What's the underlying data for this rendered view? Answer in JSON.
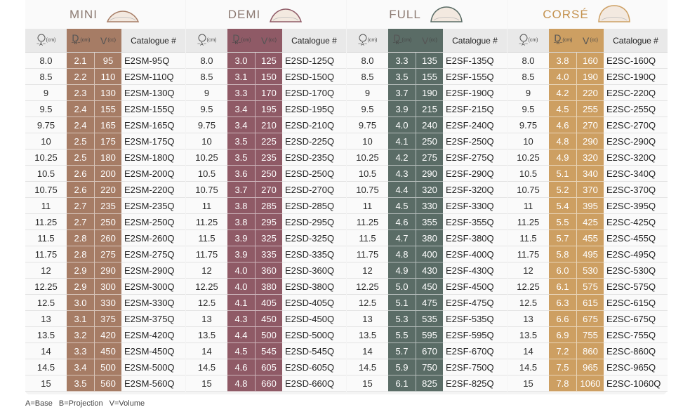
{
  "legend": {
    "a": "A=Base",
    "b": "B=Projection",
    "v": "V=Volume"
  },
  "header_labels": {
    "cm": "(cm)",
    "cc": "(cc)",
    "a": "A",
    "b": "B",
    "v": "V",
    "catalogue": "Catalogue #"
  },
  "blocks": [
    {
      "name": "MINI",
      "key": "mini",
      "rows": [
        [
          "8.0",
          "2.1",
          "95",
          "E2SM-95Q"
        ],
        [
          "8.5",
          "2.2",
          "110",
          "E2SM-110Q"
        ],
        [
          "9",
          "2.3",
          "130",
          "E2SM-130Q"
        ],
        [
          "9.5",
          "2.4",
          "155",
          "E2SM-155Q"
        ],
        [
          "9.75",
          "2.4",
          "165",
          "E2SM-165Q"
        ],
        [
          "10",
          "2.5",
          "175",
          "E2SM-175Q"
        ],
        [
          "10.25",
          "2.5",
          "180",
          "E2SM-180Q"
        ],
        [
          "10.5",
          "2.6",
          "200",
          "E2SM-200Q"
        ],
        [
          "10.75",
          "2.6",
          "220",
          "E2SM-220Q"
        ],
        [
          "11",
          "2.7",
          "235",
          "E2SM-235Q"
        ],
        [
          "11.25",
          "2.7",
          "250",
          "E2SM-250Q"
        ],
        [
          "11.5",
          "2.8",
          "260",
          "E2SM-260Q"
        ],
        [
          "11.75",
          "2.8",
          "275",
          "E2SM-275Q"
        ],
        [
          "12",
          "2.9",
          "290",
          "E2SM-290Q"
        ],
        [
          "12.25",
          "2.9",
          "300",
          "E2SM-300Q"
        ],
        [
          "12.5",
          "3.0",
          "330",
          "E2SM-330Q"
        ],
        [
          "13",
          "3.1",
          "375",
          "E2SM-375Q"
        ],
        [
          "13.5",
          "3.2",
          "420",
          "E2SM-420Q"
        ],
        [
          "14",
          "3.3",
          "450",
          "E2SM-450Q"
        ],
        [
          "14.5",
          "3.4",
          "500",
          "E2SM-500Q"
        ],
        [
          "15",
          "3.5",
          "560",
          "E2SM-560Q"
        ]
      ]
    },
    {
      "name": "DEMI",
      "key": "demi",
      "rows": [
        [
          "8.0",
          "3.0",
          "125",
          "E2SD-125Q"
        ],
        [
          "8.5",
          "3.1",
          "150",
          "E2SD-150Q"
        ],
        [
          "9",
          "3.3",
          "170",
          "E2SD-170Q"
        ],
        [
          "9.5",
          "3.4",
          "195",
          "E2SD-195Q"
        ],
        [
          "9.75",
          "3.4",
          "210",
          "E2SD-210Q"
        ],
        [
          "10",
          "3.5",
          "225",
          "E2SD-225Q"
        ],
        [
          "10.25",
          "3.5",
          "235",
          "E2SD-235Q"
        ],
        [
          "10.5",
          "3.6",
          "250",
          "E2SD-250Q"
        ],
        [
          "10.75",
          "3.7",
          "270",
          "E2SD-270Q"
        ],
        [
          "11",
          "3.8",
          "285",
          "E2SD-285Q"
        ],
        [
          "11.25",
          "3.8",
          "295",
          "E2SD-295Q"
        ],
        [
          "11.5",
          "3.9",
          "325",
          "E2SD-325Q"
        ],
        [
          "11.75",
          "3.9",
          "335",
          "E2SD-335Q"
        ],
        [
          "12",
          "4.0",
          "360",
          "E2SD-360Q"
        ],
        [
          "12.25",
          "4.0",
          "380",
          "E2SD-380Q"
        ],
        [
          "12.5",
          "4.1",
          "405",
          "E2SD-405Q"
        ],
        [
          "13",
          "4.3",
          "450",
          "E2SD-450Q"
        ],
        [
          "13.5",
          "4.4",
          "500",
          "E2SD-500Q"
        ],
        [
          "14",
          "4.5",
          "545",
          "E2SD-545Q"
        ],
        [
          "14.5",
          "4.6",
          "605",
          "E2SD-605Q"
        ],
        [
          "15",
          "4.8",
          "660",
          "E2SD-660Q"
        ]
      ]
    },
    {
      "name": "FULL",
      "key": "full",
      "rows": [
        [
          "8.0",
          "3.3",
          "135",
          "E2SF-135Q"
        ],
        [
          "8.5",
          "3.5",
          "155",
          "E2SF-155Q"
        ],
        [
          "9",
          "3.7",
          "190",
          "E2SF-190Q"
        ],
        [
          "9.5",
          "3.9",
          "215",
          "E2SF-215Q"
        ],
        [
          "9.75",
          "4.0",
          "240",
          "E2SF-240Q"
        ],
        [
          "10",
          "4.1",
          "250",
          "E2SF-250Q"
        ],
        [
          "10.25",
          "4.2",
          "275",
          "E2SF-275Q"
        ],
        [
          "10.5",
          "4.3",
          "290",
          "E2SF-290Q"
        ],
        [
          "10.75",
          "4.4",
          "320",
          "E2SF-320Q"
        ],
        [
          "11",
          "4.5",
          "330",
          "E2SF-330Q"
        ],
        [
          "11.25",
          "4.6",
          "355",
          "E2SF-355Q"
        ],
        [
          "11.5",
          "4.7",
          "380",
          "E2SF-380Q"
        ],
        [
          "11.75",
          "4.8",
          "400",
          "E2SF-400Q"
        ],
        [
          "12",
          "4.9",
          "430",
          "E2SF-430Q"
        ],
        [
          "12.25",
          "5.0",
          "450",
          "E2SF-450Q"
        ],
        [
          "12.5",
          "5.1",
          "475",
          "E2SF-475Q"
        ],
        [
          "13",
          "5.3",
          "535",
          "E2SF-535Q"
        ],
        [
          "13.5",
          "5.5",
          "595",
          "E2SF-595Q"
        ],
        [
          "14",
          "5.7",
          "670",
          "E2SF-670Q"
        ],
        [
          "14.5",
          "5.9",
          "750",
          "E2SF-750Q"
        ],
        [
          "15",
          "6.1",
          "825",
          "E2SF-825Q"
        ]
      ]
    },
    {
      "name": "CORSÉ",
      "key": "corse",
      "rows": [
        [
          "8.0",
          "3.8",
          "160",
          "E2SC-160Q"
        ],
        [
          "8.5",
          "4.0",
          "190",
          "E2SC-190Q"
        ],
        [
          "9",
          "4.2",
          "220",
          "E2SC-220Q"
        ],
        [
          "9.5",
          "4.5",
          "255",
          "E2SC-255Q"
        ],
        [
          "9.75",
          "4.6",
          "270",
          "E2SC-270Q"
        ],
        [
          "10",
          "4.8",
          "290",
          "E2SC-290Q"
        ],
        [
          "10.25",
          "4.9",
          "320",
          "E2SC-320Q"
        ],
        [
          "10.5",
          "5.1",
          "340",
          "E2SC-340Q"
        ],
        [
          "10.75",
          "5.2",
          "370",
          "E2SC-370Q"
        ],
        [
          "11",
          "5.4",
          "395",
          "E2SC-395Q"
        ],
        [
          "11.25",
          "5.5",
          "425",
          "E2SC-425Q"
        ],
        [
          "11.5",
          "5.7",
          "455",
          "E2SC-455Q"
        ],
        [
          "11.75",
          "5.8",
          "495",
          "E2SC-495Q"
        ],
        [
          "12",
          "6.0",
          "530",
          "E2SC-530Q"
        ],
        [
          "12.25",
          "6.1",
          "575",
          "E2SC-575Q"
        ],
        [
          "12.5",
          "6.3",
          "615",
          "E2SC-615Q"
        ],
        [
          "13",
          "6.6",
          "675",
          "E2SC-675Q"
        ],
        [
          "13.5",
          "6.9",
          "755",
          "E2SC-755Q"
        ],
        [
          "14",
          "7.2",
          "860",
          "E2SC-860Q"
        ],
        [
          "14.5",
          "7.5",
          "965",
          "E2SC-965Q"
        ],
        [
          "15",
          "7.8",
          "1060",
          "E2SC-1060Q"
        ]
      ]
    }
  ],
  "colors": {
    "mini": "#a67c65",
    "demi": "#8f5a66",
    "full": "#5a6c66",
    "corse": "#cd9f62"
  }
}
